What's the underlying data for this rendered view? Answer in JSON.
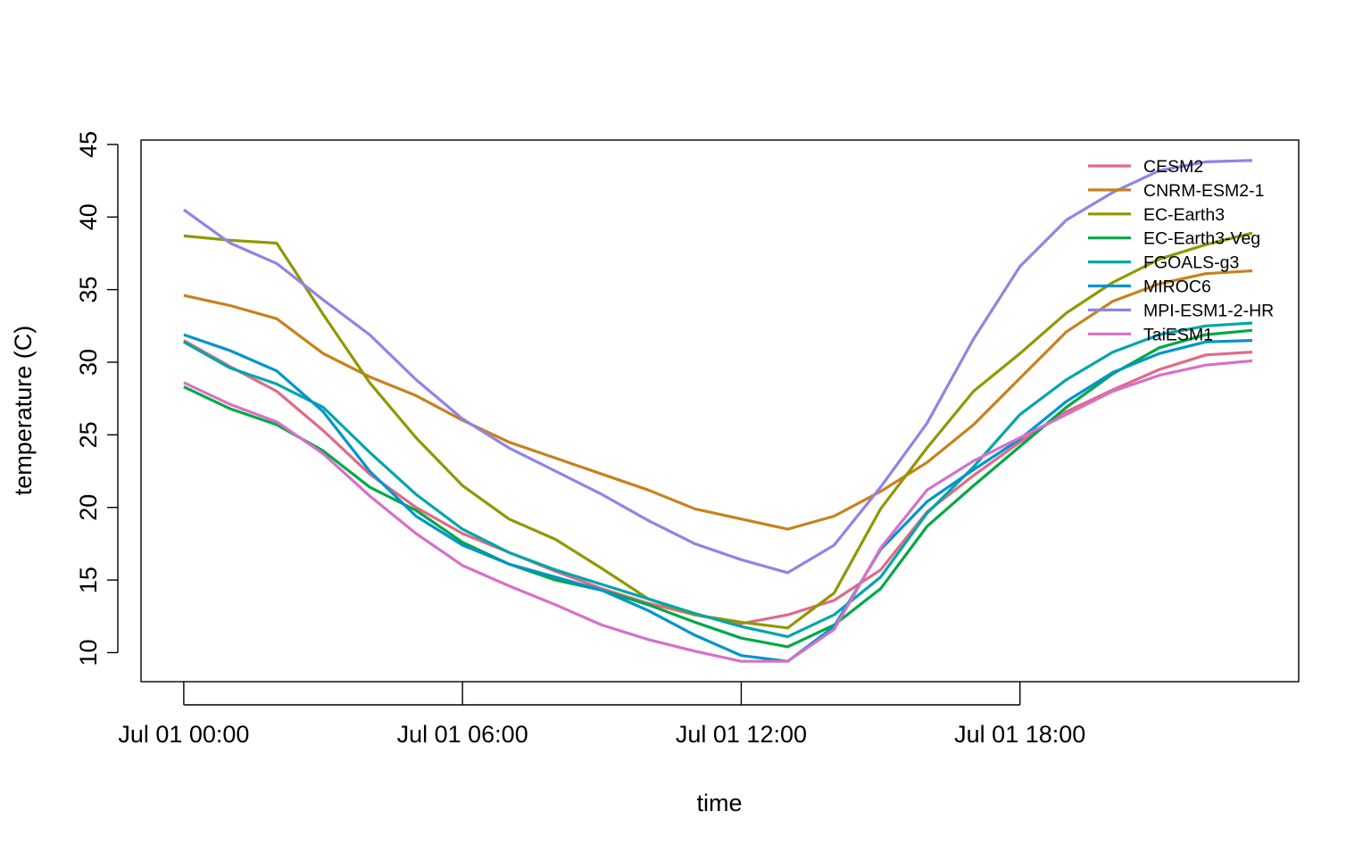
{
  "chart_data": {
    "type": "line",
    "title": "",
    "xlabel": "time",
    "ylabel": "temperature (C)",
    "x_ticks": [
      "Jul 01 00:00",
      "Jul 01 06:00",
      "Jul 01 12:00",
      "Jul 01 18:00"
    ],
    "x_tick_hours": [
      0,
      6,
      12,
      18
    ],
    "x_hours": [
      0,
      1,
      2,
      3,
      4,
      5,
      6,
      7,
      8,
      9,
      10,
      11,
      12,
      13,
      14,
      15,
      16,
      17,
      18,
      19,
      20,
      21,
      22,
      23
    ],
    "xlim_hours": [
      -0.92,
      24.0
    ],
    "y_ticks": [
      10,
      15,
      20,
      25,
      30,
      35,
      40,
      45
    ],
    "ylim": [
      8.0,
      45.3
    ],
    "legend_position": "top-right",
    "series": [
      {
        "name": "CESM2",
        "color": "#E16A86",
        "values": [
          31.5,
          29.7,
          28.0,
          25.3,
          22.3,
          20.0,
          18.2,
          16.9,
          15.6,
          14.4,
          13.4,
          12.6,
          12.0,
          12.6,
          13.6,
          15.7,
          19.7,
          22.2,
          24.5,
          26.6,
          28.1,
          29.5,
          30.5,
          30.7
        ]
      },
      {
        "name": "CNRM-ESM2-1",
        "color": "#C7821C",
        "values": [
          34.6,
          33.9,
          33.0,
          30.6,
          29.0,
          27.7,
          26.0,
          24.5,
          23.4,
          22.3,
          21.2,
          19.9,
          19.2,
          18.5,
          19.4,
          21.1,
          23.1,
          25.7,
          28.9,
          32.1,
          34.2,
          35.4,
          36.1,
          36.3
        ]
      },
      {
        "name": "EC-Earth3",
        "color": "#909800",
        "values": [
          38.7,
          38.4,
          38.2,
          33.3,
          28.6,
          24.8,
          21.5,
          19.2,
          17.8,
          15.8,
          13.7,
          12.6,
          12.1,
          11.7,
          14.1,
          19.9,
          24.1,
          28.0,
          30.6,
          33.4,
          35.5,
          37.1,
          38.1,
          38.9
        ]
      },
      {
        "name": "EC-Earth3-Veg",
        "color": "#00A846",
        "values": [
          28.3,
          26.8,
          25.7,
          23.9,
          21.4,
          19.8,
          17.6,
          16.1,
          15.0,
          14.3,
          13.3,
          12.1,
          11.0,
          10.4,
          11.9,
          14.4,
          18.7,
          21.5,
          24.2,
          26.9,
          29.2,
          31.0,
          31.9,
          32.2
        ]
      },
      {
        "name": "FGOALS-g3",
        "color": "#00A6AA",
        "values": [
          31.4,
          29.6,
          28.5,
          26.9,
          23.8,
          20.9,
          18.5,
          16.9,
          15.7,
          14.7,
          13.7,
          12.7,
          11.8,
          11.1,
          12.6,
          15.2,
          19.6,
          22.8,
          26.4,
          28.8,
          30.7,
          31.9,
          32.5,
          32.7
        ]
      },
      {
        "name": "MIROC6",
        "color": "#0094CD",
        "values": [
          31.9,
          30.8,
          29.4,
          26.6,
          22.5,
          19.4,
          17.4,
          16.1,
          15.2,
          14.3,
          12.9,
          11.2,
          9.8,
          9.4,
          11.8,
          17.1,
          20.4,
          22.6,
          24.7,
          27.3,
          29.3,
          30.6,
          31.4,
          31.5
        ]
      },
      {
        "name": "MPI-ESM1-2-HR",
        "color": "#9183E6",
        "values": [
          40.5,
          38.2,
          36.8,
          34.3,
          31.9,
          28.8,
          26.1,
          24.1,
          22.5,
          20.9,
          19.1,
          17.5,
          16.4,
          15.5,
          17.4,
          21.4,
          25.8,
          31.6,
          36.6,
          39.8,
          41.7,
          43.2,
          43.8,
          43.9
        ]
      },
      {
        "name": "TaiESM1",
        "color": "#D770C8",
        "values": [
          28.6,
          27.1,
          25.9,
          23.7,
          20.8,
          18.2,
          16.0,
          14.6,
          13.3,
          11.9,
          10.9,
          10.1,
          9.4,
          9.4,
          11.6,
          17.2,
          21.2,
          23.2,
          24.8,
          26.4,
          28.0,
          29.1,
          29.8,
          30.1
        ]
      }
    ]
  }
}
